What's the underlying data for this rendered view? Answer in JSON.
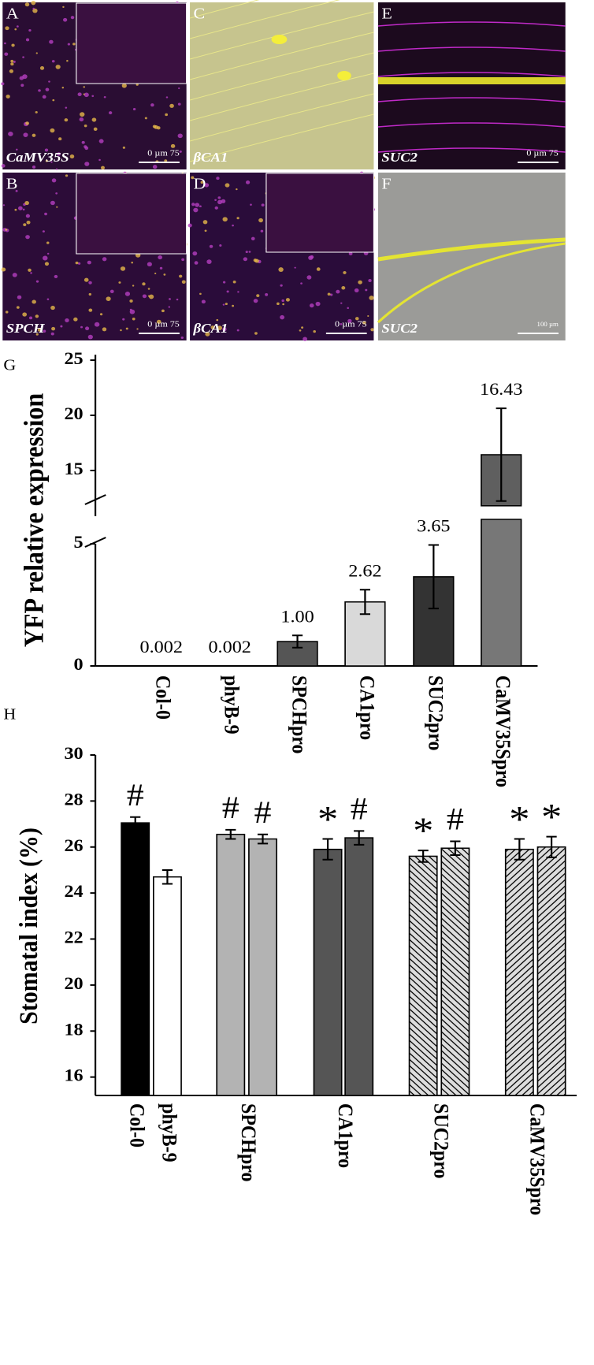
{
  "panels": [
    {
      "letter": "A",
      "label": "CaMV35S",
      "scale": "0 µm 75"
    },
    {
      "letter": "C",
      "label": "βCA1"
    },
    {
      "letter": "E",
      "label": "SUC2",
      "scale": "0 µm 75"
    },
    {
      "letter": "B",
      "label": "SPCH",
      "scale": "0 µm 75"
    },
    {
      "letter": "D",
      "label": "βCA1",
      "scale": "0 µm 75"
    },
    {
      "letter": "F",
      "label": "SUC2",
      "scale": "100 µm"
    }
  ],
  "chart_data": [
    {
      "type": "bar",
      "panel": "G",
      "y_label": "YFP relative expression",
      "categories": [
        "Col-0",
        "phyB-9",
        "SPCHpro",
        "CA1pro",
        "SUC2pro",
        "CaMV35Spro"
      ],
      "values": [
        0.002,
        0.002,
        1.0,
        2.62,
        3.65,
        16.43
      ],
      "value_labels": [
        "0.002",
        "0.002",
        "1.00",
        "2.62",
        "3.65",
        "16.43"
      ],
      "errors": [
        null,
        null,
        0.25,
        0.5,
        1.3,
        4.2
      ],
      "colors": [
        null,
        null,
        "#555555",
        "#d9d9d9",
        "#333333",
        "#777777"
      ],
      "ylim": [
        0,
        25
      ],
      "axis_break": [
        6,
        11.5
      ],
      "yticks": [
        0,
        5,
        15,
        20,
        25
      ]
    },
    {
      "type": "grouped-bar",
      "panel": "H",
      "y_label": "Stomatal index (%)",
      "ylim": [
        15.2,
        30
      ],
      "yticks": [
        16,
        18,
        20,
        22,
        24,
        26,
        28,
        30
      ],
      "groups": [
        {
          "label": "Col-0",
          "values": [
            27.05
          ],
          "errors": [
            0.25
          ],
          "marks": [
            "#"
          ],
          "fills": [
            "#000000"
          ],
          "patterns": [
            null
          ]
        },
        {
          "label": "phyB-9",
          "values": [
            24.7
          ],
          "errors": [
            0.3
          ],
          "marks": [
            null
          ],
          "fills": [
            "#ffffff"
          ],
          "patterns": [
            null
          ]
        },
        {
          "label": "SPCHpro",
          "values": [
            26.55,
            26.35
          ],
          "errors": [
            0.2,
            0.2
          ],
          "marks": [
            "#",
            "#"
          ],
          "fills": [
            "#b3b3b3",
            "#b3b3b3"
          ],
          "patterns": [
            null,
            null
          ]
        },
        {
          "label": "CA1pro",
          "values": [
            25.9,
            26.4
          ],
          "errors": [
            0.45,
            0.3
          ],
          "marks": [
            "*",
            "#"
          ],
          "fills": [
            "#555555",
            "#555555"
          ],
          "patterns": [
            null,
            null
          ]
        },
        {
          "label": "SUC2pro",
          "values": [
            25.6,
            25.95
          ],
          "errors": [
            0.25,
            0.3
          ],
          "marks": [
            "*",
            "#"
          ],
          "fills": [
            "#dddddd",
            "#dddddd"
          ],
          "patterns": [
            "back-diagonal",
            "back-diagonal"
          ]
        },
        {
          "label": "CaMV35Spro",
          "values": [
            25.9,
            26.0
          ],
          "errors": [
            0.45,
            0.45
          ],
          "marks": [
            "*",
            "*"
          ],
          "fills": [
            "#dddddd",
            "#dddddd"
          ],
          "patterns": [
            "diagonal",
            "diagonal"
          ]
        }
      ]
    }
  ]
}
